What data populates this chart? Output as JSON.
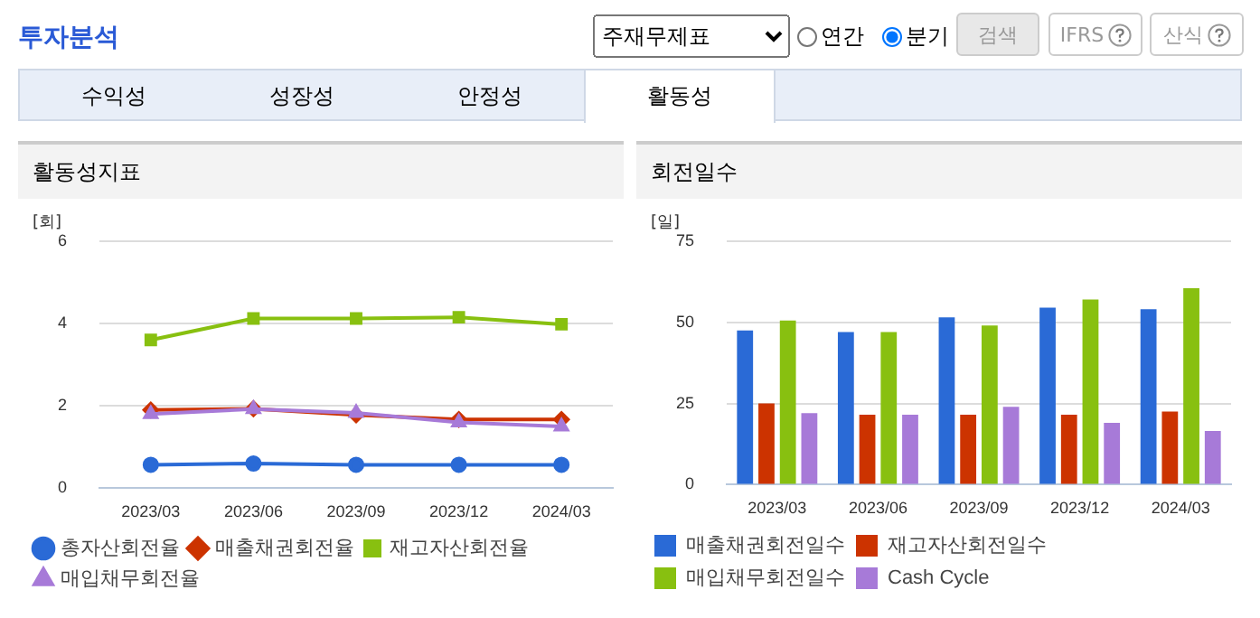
{
  "chart_data": [
    {
      "type": "line",
      "title": "활동성지표",
      "ylabel": "[회]",
      "categories": [
        "2023/03",
        "2023/06",
        "2023/09",
        "2023/12",
        "2024/03"
      ],
      "ylim": [
        0,
        6
      ],
      "yticks": [
        0,
        2,
        4,
        6
      ],
      "grid": "y",
      "legend": "bottom",
      "annotations": [
        "투자분석",
        "주재무제표",
        "연간",
        "분기",
        "검색",
        "IFRS",
        "산식",
        "수익성",
        "성장성",
        "안정성",
        "활동성"
      ],
      "series": [
        {
          "name": "총자산회전율",
          "color": "#2a6ad6",
          "marker": "circle",
          "values": [
            0.57,
            0.6,
            0.57,
            0.57,
            0.57
          ]
        },
        {
          "name": "매출채권회전율",
          "color": "#cc3300",
          "marker": "diamond",
          "values": [
            1.9,
            1.93,
            1.78,
            1.67,
            1.67
          ]
        },
        {
          "name": "재고자산회전율",
          "color": "#88c010",
          "marker": "square",
          "values": [
            3.6,
            4.12,
            4.12,
            4.15,
            3.98
          ]
        },
        {
          "name": "매입채무회전율",
          "color": "#a77ad8",
          "marker": "triangle",
          "values": [
            1.8,
            1.92,
            1.83,
            1.6,
            1.5
          ]
        }
      ]
    },
    {
      "type": "bar",
      "title": "회전일수",
      "ylabel": "[일]",
      "categories": [
        "2023/03",
        "2023/06",
        "2023/09",
        "2023/12",
        "2024/03"
      ],
      "ylim": [
        0,
        75
      ],
      "yticks": [
        0,
        25,
        50,
        75
      ],
      "grid": "y",
      "legend": "bottom",
      "series": [
        {
          "name": "매출채권회전일수",
          "color": "#2a6ad6",
          "values": [
            47.5,
            47,
            51.5,
            54.5,
            54
          ]
        },
        {
          "name": "재고자산회전일수",
          "color": "#cc3300",
          "values": [
            25,
            21.5,
            21.5,
            21.5,
            22.5
          ]
        },
        {
          "name": "매입채무회전일수",
          "color": "#88c010",
          "values": [
            50.5,
            47,
            49,
            57,
            60.5
          ]
        },
        {
          "name": "Cash Cycle",
          "color": "#a77ad8",
          "values": [
            22,
            21.5,
            24,
            19,
            16.5
          ]
        }
      ]
    }
  ]
}
